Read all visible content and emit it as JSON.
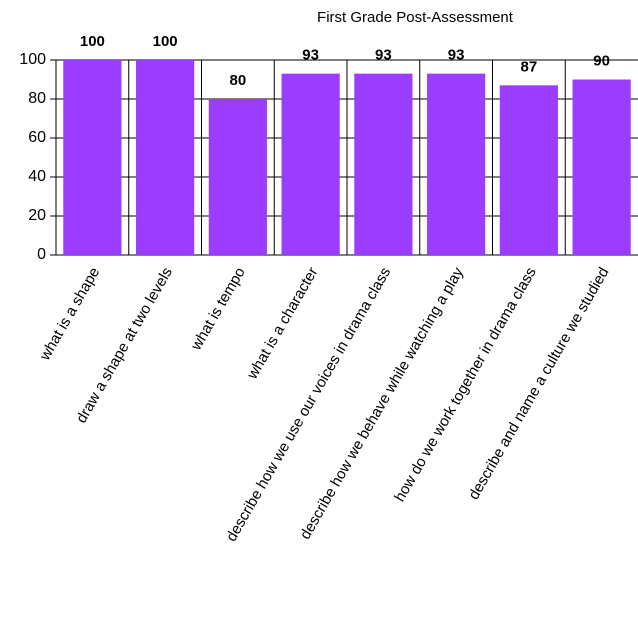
{
  "chart_data": {
    "type": "bar",
    "title": "First Grade Post-Assessment",
    "categories": [
      "what is a shape",
      "draw a shape at two levels",
      "what is tempo",
      "what is a character",
      "describe how we use our voices in drama class",
      "describe how we behave while watching a play",
      "how do we work together in drama class",
      "describe and name a culture we studied"
    ],
    "values": [
      100,
      100,
      80,
      93,
      93,
      93,
      87,
      90
    ],
    "color": "#9b3dff",
    "ylim": [
      0,
      100
    ],
    "yticks": [
      0,
      20,
      40,
      60,
      80,
      100
    ],
    "grid": true
  }
}
